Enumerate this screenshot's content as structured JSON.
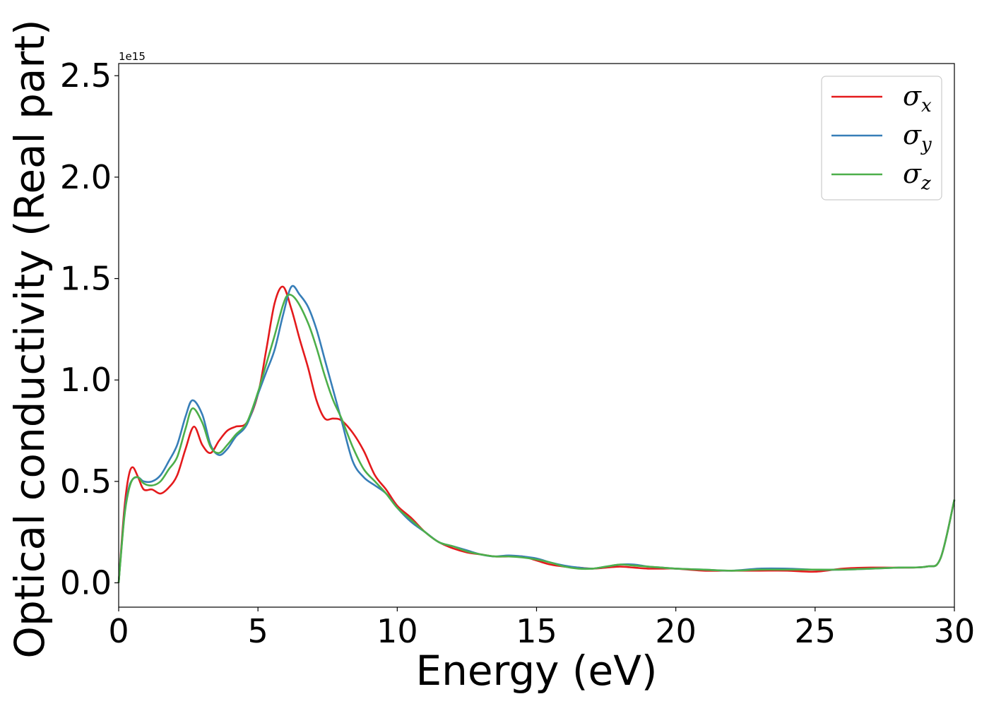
{
  "chart_data": {
    "type": "line",
    "xlabel": "Energy (eV)",
    "ylabel": "Optical conductivity (Real part)",
    "y_offset_label": "1e15",
    "xlim": [
      0,
      30
    ],
    "ylim": [
      -0.12,
      2.56
    ],
    "xticks": [
      0,
      5,
      10,
      15,
      20,
      25,
      30
    ],
    "xtick_labels": [
      "0",
      "5",
      "10",
      "15",
      "20",
      "25",
      "30"
    ],
    "yticks": [
      0.0,
      0.5,
      1.0,
      1.5,
      2.0,
      2.5
    ],
    "ytick_labels": [
      "0.0",
      "0.5",
      "1.0",
      "1.5",
      "2.0",
      "2.5"
    ],
    "grid": false,
    "legend_position": "top-right",
    "series": [
      {
        "name": "σx",
        "symbol": "σ",
        "subscript": "x",
        "color": "#e41a1c",
        "x": [
          0,
          0.2,
          0.35,
          0.5,
          0.7,
          0.9,
          1.2,
          1.5,
          1.8,
          2.1,
          2.4,
          2.7,
          3.0,
          3.3,
          3.6,
          3.9,
          4.2,
          4.6,
          5.0,
          5.3,
          5.6,
          5.9,
          6.2,
          6.5,
          6.8,
          7.1,
          7.4,
          7.7,
          8.0,
          8.4,
          8.8,
          9.2,
          9.6,
          10.0,
          10.5,
          11.0,
          11.5,
          12.0,
          12.5,
          13.0,
          13.5,
          14.0,
          14.5,
          15.0,
          15.5,
          16.0,
          16.5,
          17.0,
          17.5,
          18.0,
          18.5,
          19.0,
          19.5,
          20.0,
          21.0,
          22.0,
          23.0,
          24.0,
          25.0,
          26.0,
          27.0,
          28.0,
          29.0,
          29.5,
          30.0
        ],
        "y": [
          0.0,
          0.36,
          0.52,
          0.57,
          0.52,
          0.46,
          0.46,
          0.44,
          0.47,
          0.53,
          0.66,
          0.77,
          0.68,
          0.64,
          0.7,
          0.75,
          0.77,
          0.79,
          0.93,
          1.15,
          1.38,
          1.46,
          1.35,
          1.2,
          1.06,
          0.9,
          0.81,
          0.81,
          0.8,
          0.74,
          0.65,
          0.53,
          0.46,
          0.38,
          0.32,
          0.25,
          0.2,
          0.17,
          0.15,
          0.14,
          0.13,
          0.13,
          0.13,
          0.11,
          0.09,
          0.08,
          0.075,
          0.07,
          0.075,
          0.08,
          0.075,
          0.07,
          0.07,
          0.07,
          0.06,
          0.06,
          0.06,
          0.06,
          0.055,
          0.07,
          0.075,
          0.075,
          0.08,
          0.12,
          0.41
        ]
      },
      {
        "name": "σy",
        "symbol": "σ",
        "subscript": "y",
        "color": "#377eb8",
        "x": [
          0,
          0.2,
          0.35,
          0.5,
          0.7,
          0.9,
          1.2,
          1.5,
          1.8,
          2.1,
          2.4,
          2.65,
          3.0,
          3.3,
          3.6,
          3.9,
          4.2,
          4.6,
          5.0,
          5.3,
          5.6,
          5.9,
          6.2,
          6.5,
          6.8,
          7.1,
          7.4,
          7.7,
          8.0,
          8.4,
          8.8,
          9.2,
          9.6,
          10.0,
          10.5,
          11.0,
          11.5,
          12.0,
          12.5,
          13.0,
          13.5,
          14.0,
          14.5,
          15.0,
          15.5,
          16.0,
          16.5,
          17.0,
          17.5,
          18.0,
          18.5,
          19.0,
          19.5,
          20.0,
          21.0,
          22.0,
          23.0,
          24.0,
          25.0,
          26.0,
          27.0,
          28.0,
          29.0,
          29.5,
          30.0
        ],
        "y": [
          0.0,
          0.33,
          0.46,
          0.51,
          0.52,
          0.5,
          0.5,
          0.53,
          0.6,
          0.68,
          0.82,
          0.9,
          0.83,
          0.68,
          0.63,
          0.66,
          0.72,
          0.78,
          0.93,
          1.04,
          1.15,
          1.32,
          1.46,
          1.42,
          1.36,
          1.25,
          1.1,
          0.95,
          0.8,
          0.6,
          0.52,
          0.48,
          0.44,
          0.37,
          0.3,
          0.25,
          0.2,
          0.18,
          0.16,
          0.14,
          0.13,
          0.135,
          0.13,
          0.12,
          0.1,
          0.085,
          0.075,
          0.07,
          0.08,
          0.09,
          0.09,
          0.08,
          0.075,
          0.07,
          0.065,
          0.06,
          0.07,
          0.07,
          0.065,
          0.065,
          0.07,
          0.075,
          0.08,
          0.12,
          0.41
        ]
      },
      {
        "name": "σz",
        "symbol": "σ",
        "subscript": "z",
        "color": "#4daf4a",
        "x": [
          0,
          0.2,
          0.35,
          0.5,
          0.7,
          0.9,
          1.2,
          1.5,
          1.8,
          2.1,
          2.4,
          2.65,
          3.0,
          3.3,
          3.6,
          3.9,
          4.2,
          4.6,
          5.0,
          5.3,
          5.6,
          5.9,
          6.1,
          6.4,
          6.8,
          7.1,
          7.4,
          7.7,
          8.0,
          8.4,
          8.8,
          9.2,
          9.6,
          10.0,
          10.5,
          11.0,
          11.5,
          12.0,
          12.5,
          13.0,
          13.5,
          14.0,
          14.5,
          15.0,
          15.5,
          16.0,
          16.5,
          17.0,
          17.5,
          18.0,
          18.5,
          19.0,
          19.5,
          20.0,
          21.0,
          22.0,
          23.0,
          24.0,
          25.0,
          26.0,
          27.0,
          28.0,
          29.0,
          29.5,
          30.0
        ],
        "y": [
          0.0,
          0.32,
          0.45,
          0.51,
          0.52,
          0.49,
          0.48,
          0.5,
          0.56,
          0.62,
          0.76,
          0.86,
          0.79,
          0.67,
          0.64,
          0.68,
          0.73,
          0.79,
          0.94,
          1.08,
          1.22,
          1.37,
          1.42,
          1.39,
          1.28,
          1.16,
          1.02,
          0.9,
          0.81,
          0.67,
          0.56,
          0.5,
          0.44,
          0.37,
          0.31,
          0.25,
          0.2,
          0.18,
          0.155,
          0.14,
          0.13,
          0.13,
          0.125,
          0.115,
          0.1,
          0.08,
          0.07,
          0.07,
          0.08,
          0.09,
          0.085,
          0.08,
          0.075,
          0.07,
          0.065,
          0.06,
          0.065,
          0.065,
          0.065,
          0.065,
          0.07,
          0.075,
          0.08,
          0.12,
          0.41
        ]
      }
    ]
  }
}
